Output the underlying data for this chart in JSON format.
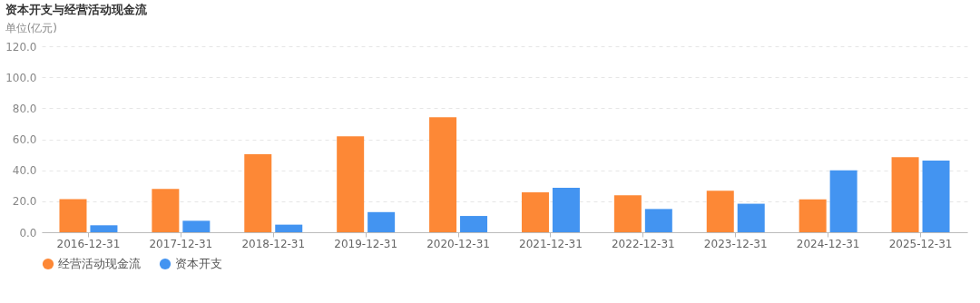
{
  "chart_data": {
    "type": "bar",
    "title": "资本开支与经营活动现金流",
    "ylabel": "单位(亿元)",
    "categories": [
      "2016-12-31",
      "2017-12-31",
      "2018-12-31",
      "2019-12-31",
      "2020-12-31",
      "2021-12-31",
      "2022-12-31",
      "2023-12-31",
      "2024-12-31",
      "2025-12-31"
    ],
    "series": [
      {
        "name": "经营活动现金流",
        "color": "#fd8836",
        "values": [
          21.4,
          28.0,
          50.3,
          61.9,
          74.2,
          25.8,
          23.9,
          26.8,
          21.2,
          48.5
        ]
      },
      {
        "name": "资本开支",
        "color": "#4394f1",
        "values": [
          4.5,
          7.4,
          4.9,
          13.0,
          10.5,
          28.7,
          15.0,
          18.4,
          40.0,
          46.2
        ]
      }
    ],
    "ylim": [
      0,
      120
    ],
    "yticks": [
      {
        "value": 0,
        "label": "0.0"
      },
      {
        "value": 20,
        "label": "20.0"
      },
      {
        "value": 40,
        "label": "40.0"
      },
      {
        "value": 60,
        "label": "60.0"
      },
      {
        "value": 80,
        "label": "80.0"
      },
      {
        "value": 100,
        "label": "100.0"
      },
      {
        "value": 120,
        "label": "120.0"
      }
    ],
    "grid": "y",
    "legend": "bottom"
  }
}
